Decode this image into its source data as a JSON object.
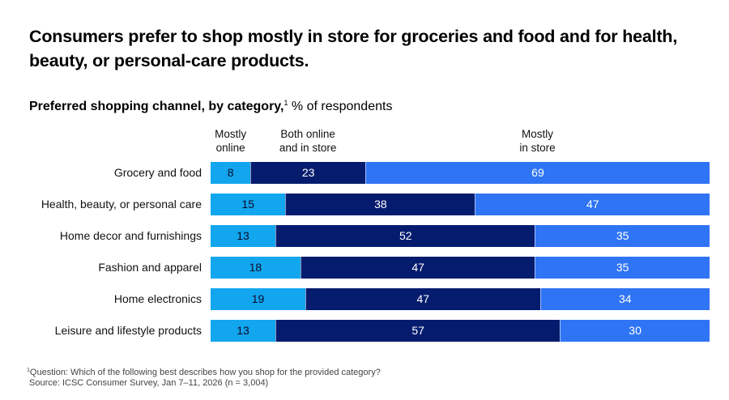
{
  "title": "Consumers prefer to shop mostly in store for groceries and food and for health, beauty, or personal-care products.",
  "subtitle": {
    "bold": "Preferred shopping channel, by category,",
    "footnote_marker": "1",
    "rest": " % of respondents"
  },
  "footnote": {
    "marker": "1",
    "question": "Question: Which of the following best describes how you shop for the provided category?",
    "source": "Source: ICSC Consumer Survey, Jan 7–11, 2026 (n = 3,004)"
  },
  "colors": {
    "mostly_online": "#12A6EE",
    "both": "#051C6E",
    "mostly_in_store": "#2F74F4",
    "label_dark": "#0a0a2a",
    "label_light": "#ffffff"
  },
  "chart_data": {
    "type": "bar",
    "orientation": "horizontal",
    "stacked": true,
    "title": "Preferred shopping channel, by category, % of respondents",
    "xlabel": "",
    "ylabel": "",
    "xlim": [
      0,
      100
    ],
    "grid": false,
    "legend": "column headers above bars",
    "categories": [
      "Grocery and food",
      "Health, beauty, or personal care",
      "Home decor and furnishings",
      "Fashion and apparel",
      "Home electronics",
      "Leisure and lifestyle products"
    ],
    "series": [
      {
        "name": "Mostly online",
        "header_lines": [
          "Mostly",
          "online"
        ],
        "values": [
          8,
          15,
          13,
          18,
          19,
          13
        ]
      },
      {
        "name": "Both online and in store",
        "header_lines": [
          "Both online",
          "and in store"
        ],
        "values": [
          23,
          38,
          52,
          47,
          47,
          57
        ]
      },
      {
        "name": "Mostly in store",
        "header_lines": [
          "Mostly",
          "in store"
        ],
        "values": [
          69,
          47,
          35,
          35,
          34,
          30
        ]
      }
    ]
  }
}
